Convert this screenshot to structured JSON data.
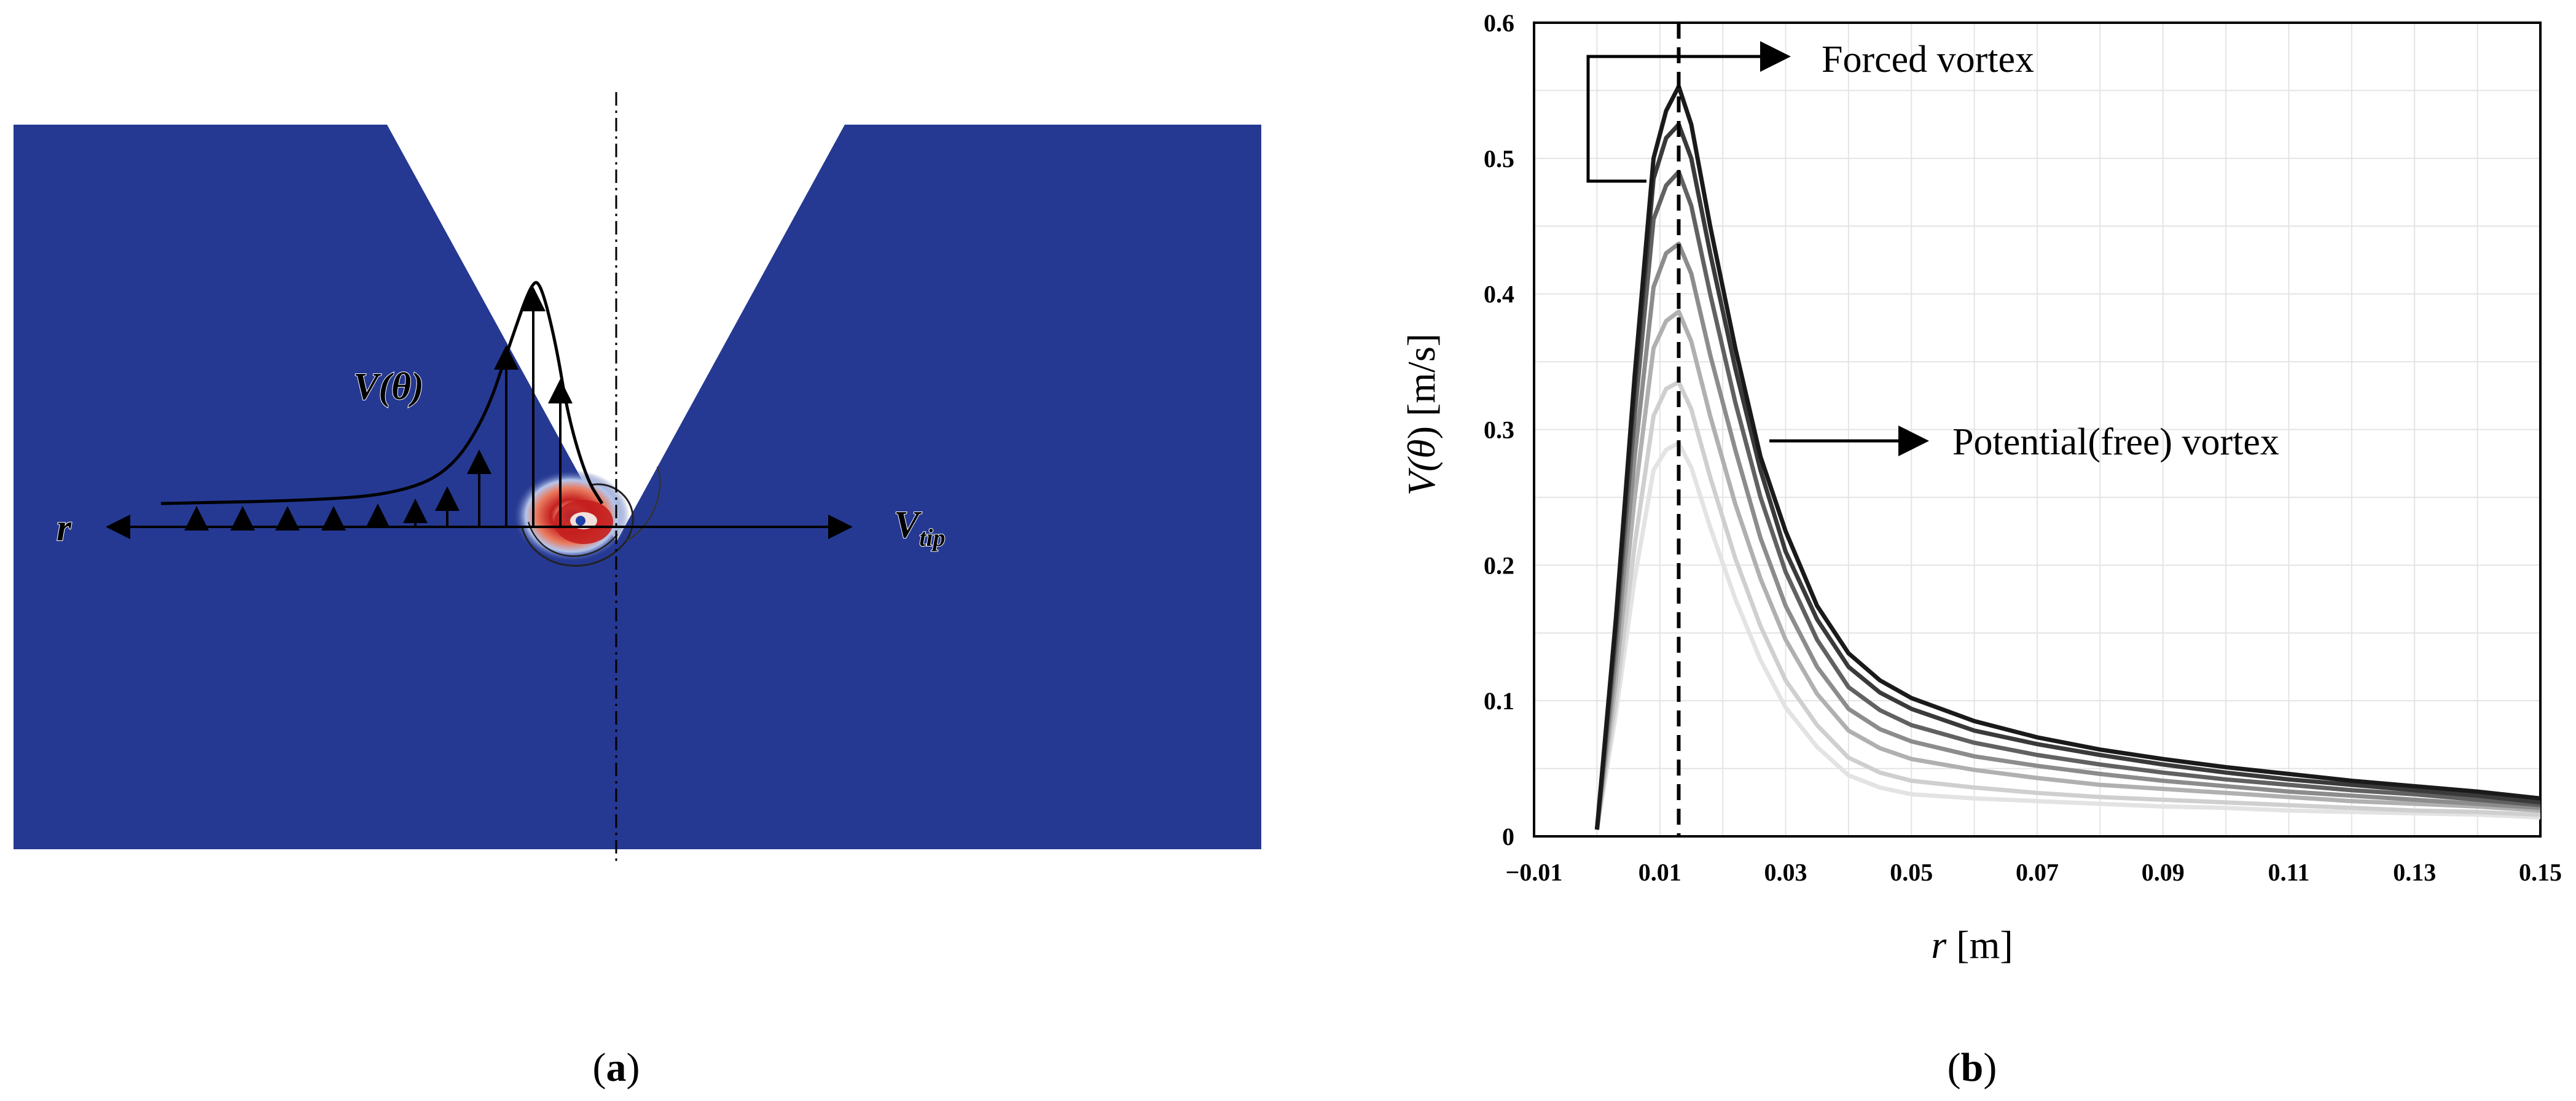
{
  "panel_a": {
    "label": "(a)",
    "label_letter": "a",
    "annotations": {
      "velocity": "V(θ)",
      "velocity_base": "V(",
      "velocity_theta": "θ",
      "velocity_close": ")",
      "radius": "r",
      "tip_base": "V",
      "tip_sub": "tip"
    },
    "colors": {
      "background_field": "#253993",
      "vortex_core": "#c41f1f",
      "vortex_ring": "#ffffff"
    }
  },
  "panel_b": {
    "label": "(b)",
    "label_letter": "b",
    "annotations": {
      "forced": "Forced vortex",
      "potential": "Potential(free) vortex"
    }
  },
  "chart_data": {
    "type": "line",
    "title": "",
    "xlabel": "r [m]",
    "xlabel_var": "r",
    "xlabel_unit": " [m]",
    "ylabel": "V(θ) [m/s]",
    "ylabel_var": "V(",
    "ylabel_theta": "θ",
    "ylabel_unit": ") [m/s]",
    "xlim": [
      -0.01,
      0.15
    ],
    "ylim": [
      0,
      0.6
    ],
    "x_ticks": [
      -0.01,
      0.01,
      0.03,
      0.05,
      0.07,
      0.09,
      0.11,
      0.13,
      0.15
    ],
    "x_tick_labels": [
      "−0.01",
      "0.01",
      "0.03",
      "0.05",
      "0.07",
      "0.09",
      "0.11",
      "0.13",
      "0.15"
    ],
    "y_ticks": [
      0,
      0.1,
      0.2,
      0.3,
      0.4,
      0.5,
      0.6
    ],
    "y_tick_labels": [
      "0",
      "0.1",
      "0.2",
      "0.3",
      "0.4",
      "0.5",
      "0.6"
    ],
    "grid": true,
    "reference_line_x": 0.013,
    "colors": [
      "#1a1a1a",
      "#3a3a3a",
      "#616161",
      "#8c8c8c",
      "#b0b0b0",
      "#cfcfcf",
      "#e3e3e3"
    ],
    "x": [
      0.0,
      0.003,
      0.006,
      0.009,
      0.011,
      0.013,
      0.015,
      0.018,
      0.022,
      0.026,
      0.03,
      0.035,
      0.04,
      0.045,
      0.05,
      0.06,
      0.07,
      0.08,
      0.09,
      0.1,
      0.11,
      0.12,
      0.13,
      0.14,
      0.15
    ],
    "series": [
      {
        "values": [
          0.005,
          0.16,
          0.34,
          0.5,
          0.535,
          0.553,
          0.525,
          0.45,
          0.36,
          0.28,
          0.225,
          0.17,
          0.135,
          0.115,
          0.102,
          0.085,
          0.073,
          0.064,
          0.057,
          0.051,
          0.046,
          0.041,
          0.037,
          0.033,
          0.028
        ]
      },
      {
        "values": [
          0.005,
          0.155,
          0.33,
          0.485,
          0.515,
          0.525,
          0.5,
          0.43,
          0.345,
          0.27,
          0.21,
          0.16,
          0.125,
          0.106,
          0.094,
          0.078,
          0.068,
          0.06,
          0.053,
          0.047,
          0.042,
          0.038,
          0.034,
          0.03,
          0.025
        ]
      },
      {
        "values": [
          0.005,
          0.145,
          0.31,
          0.455,
          0.48,
          0.49,
          0.465,
          0.4,
          0.32,
          0.25,
          0.195,
          0.145,
          0.11,
          0.093,
          0.082,
          0.069,
          0.06,
          0.053,
          0.047,
          0.042,
          0.038,
          0.034,
          0.031,
          0.027,
          0.023
        ]
      },
      {
        "values": [
          0.005,
          0.13,
          0.28,
          0.405,
          0.43,
          0.437,
          0.415,
          0.355,
          0.285,
          0.22,
          0.17,
          0.125,
          0.094,
          0.079,
          0.07,
          0.059,
          0.052,
          0.046,
          0.041,
          0.037,
          0.033,
          0.03,
          0.027,
          0.024,
          0.021
        ]
      },
      {
        "values": [
          0.005,
          0.115,
          0.25,
          0.36,
          0.38,
          0.387,
          0.365,
          0.31,
          0.245,
          0.19,
          0.145,
          0.105,
          0.078,
          0.065,
          0.057,
          0.049,
          0.043,
          0.038,
          0.035,
          0.032,
          0.029,
          0.026,
          0.024,
          0.022,
          0.019
        ]
      },
      {
        "values": [
          0.005,
          0.1,
          0.215,
          0.31,
          0.33,
          0.335,
          0.315,
          0.265,
          0.205,
          0.155,
          0.115,
          0.082,
          0.058,
          0.047,
          0.041,
          0.036,
          0.032,
          0.029,
          0.027,
          0.025,
          0.023,
          0.021,
          0.019,
          0.018,
          0.016
        ]
      },
      {
        "values": [
          0.005,
          0.09,
          0.19,
          0.27,
          0.285,
          0.29,
          0.272,
          0.228,
          0.175,
          0.13,
          0.095,
          0.066,
          0.045,
          0.036,
          0.031,
          0.028,
          0.026,
          0.024,
          0.022,
          0.021,
          0.019,
          0.018,
          0.017,
          0.016,
          0.014
        ]
      }
    ]
  }
}
